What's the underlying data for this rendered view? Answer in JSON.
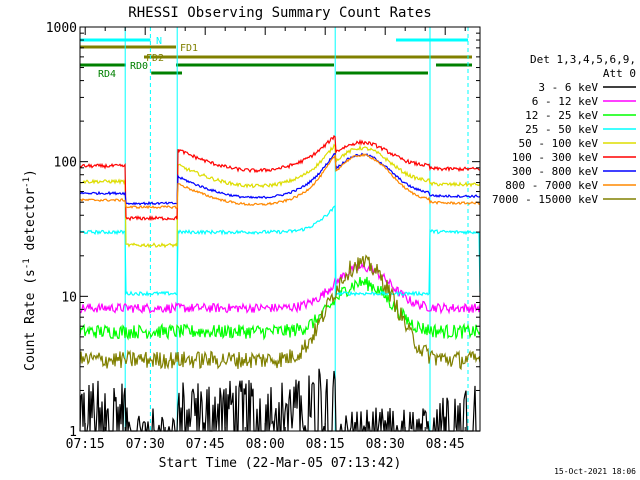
{
  "chart_data": {
    "type": "line",
    "title": "RHESSI Observing Summary Count Rates",
    "xlabel": "Start Time (22-Mar-05 07:13:42)",
    "ylabel": "Count Rate (s^-1 detector^-1)",
    "ylabel_main": "Count Rate (s",
    "ylabel_sup1": "-1",
    "ylabel_mid": " detector",
    "ylabel_sup2": "-1",
    "ylabel_end": ")",
    "y_scale": "log",
    "ylim": [
      1,
      1000
    ],
    "y_ticks": [
      {
        "value": 1,
        "label": "1"
      },
      {
        "value": 10,
        "label": "10"
      },
      {
        "value": 100,
        "label": "100"
      },
      {
        "value": 1000,
        "label": "1000"
      }
    ],
    "xlim": [
      0,
      100
    ],
    "x_ticks": [
      {
        "value": 1.3,
        "label": "07:15"
      },
      {
        "value": 16.3,
        "label": "07:30"
      },
      {
        "value": 31.3,
        "label": "07:45"
      },
      {
        "value": 46.3,
        "label": "08:00"
      },
      {
        "value": 61.3,
        "label": "08:15"
      },
      {
        "value": 76.3,
        "label": "08:30"
      },
      {
        "value": 91.3,
        "label": "08:45"
      }
    ],
    "legend_header": [
      "Det 1,3,4,5,6,9,",
      "Att 0"
    ],
    "legend_placement": "right",
    "footer_date": "15-Oct-2021 18:06",
    "series": [
      {
        "name": "3 - 6 keV",
        "color": "#000000",
        "base": 1.6,
        "gap": 1,
        "sun": 1.2,
        "noise": 0.5
      },
      {
        "name": "6 - 12 keV",
        "color": "#ff00ff",
        "base": 8.2,
        "gap": 0,
        "sun": 1.0,
        "noise": 0.08
      },
      {
        "name": "12 - 25 keV",
        "color": "#00ff00",
        "base": 5.5,
        "gap": 0,
        "sun": 1.3,
        "noise": 0.12
      },
      {
        "name": "25 - 50 keV",
        "color": "#00ffff",
        "base": 30,
        "gap": 10.5,
        "sun": 1.0,
        "noise": 0.03
      },
      {
        "name": "50 - 100 keV",
        "color": "#dddd00",
        "base": 24,
        "gap": 0,
        "sun": 1.4,
        "noise": 0.03,
        "day": 66
      },
      {
        "name": "100 - 300 keV",
        "color": "#ff0000",
        "base": 38,
        "gap": 0,
        "sun": 0.9,
        "noise": 0.03,
        "day": 86
      },
      {
        "name": "300 - 800 keV",
        "color": "#0000ff",
        "base": 49,
        "gap": 0,
        "sun": 1.7,
        "noise": 0.02,
        "day": 54
      },
      {
        "name": "800 - 7000 keV",
        "color": "#ff8800",
        "base": 46,
        "gap": 0,
        "sun": 2.1,
        "noise": 0.02,
        "day": 48
      },
      {
        "name": "7000 - 15000 keV",
        "color": "#808000",
        "base": 3.4,
        "gap": 0,
        "sun": 4.2,
        "noise": 0.15
      }
    ],
    "flag_bars": [
      {
        "label": "N",
        "color": "#00ffff",
        "y": 40,
        "segments": [
          [
            0,
            17.6
          ],
          [
            79,
            97
          ]
        ],
        "label_at": 19
      },
      {
        "label": "FD1",
        "color": "#808000",
        "y": 47,
        "segments": [
          [
            0,
            24
          ]
        ],
        "label_at": 25
      },
      {
        "label": "FD2",
        "color": "#808000",
        "y": 57,
        "segments": [
          [
            16,
            98
          ]
        ],
        "label_at": 16.5
      },
      {
        "label": "RD0",
        "color": "#008000",
        "y": 65,
        "segments": [
          [
            0,
            11.5
          ],
          [
            24,
            63.5
          ],
          [
            89,
            98
          ]
        ],
        "label_at": 12.5
      },
      {
        "label": "RD4",
        "color": "#008000",
        "y": 73,
        "segments": [
          [
            17.8,
            25.5
          ],
          [
            64,
            87
          ]
        ],
        "label_at": 4.5
      }
    ],
    "night_intervals": [
      [
        0,
        11.3
      ],
      [
        24.3,
        63.8
      ],
      [
        87.5,
        100
      ]
    ],
    "saa_lines": [
      17.6,
      97
    ]
  }
}
